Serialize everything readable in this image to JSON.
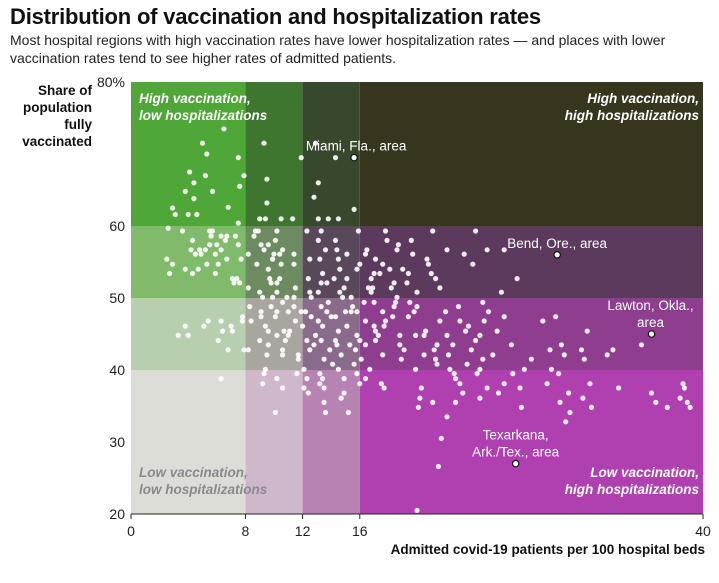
{
  "chart_data": {
    "type": "scatter",
    "title": "Distribution of vaccination and hospitalization rates",
    "subtitle": "Most hospital regions with high vaccination rates have lower hospitalization rates — and places with lower vaccination rates tend to see higher rates of admitted patients.",
    "ylabel": "Share of population fully vaccinated",
    "xlabel": "Admitted covid-19 patients per 100 hospital beds",
    "xlim": [
      0,
      40
    ],
    "ylim": [
      20,
      80
    ],
    "x_ticks": [
      {
        "value": 0,
        "label": "0"
      },
      {
        "value": 8,
        "label": "8"
      },
      {
        "value": 12,
        "label": "12"
      },
      {
        "value": 16,
        "label": "16"
      },
      {
        "value": 40,
        "label": "40"
      }
    ],
    "y_ticks": [
      {
        "value": 80,
        "label": "80%"
      },
      {
        "value": 60,
        "label": "60"
      },
      {
        "value": 50,
        "label": "50"
      },
      {
        "value": 40,
        "label": "40"
      },
      {
        "value": 30,
        "label": "30"
      },
      {
        "value": 20,
        "label": "20"
      }
    ],
    "x_breaks": [
      0,
      8,
      12,
      16,
      40
    ],
    "y_breaks": [
      20,
      40,
      50,
      60,
      80
    ],
    "band_colors": [
      [
        "#ddddd8",
        "#d0b8cc",
        "#b783b2",
        "#b040b0"
      ],
      [
        "#b7cfae",
        "#a9a59f",
        "#8b6b8c",
        "#8e3d8f"
      ],
      [
        "#7fbb6b",
        "#6e8a60",
        "#58485a",
        "#5c3a5e"
      ],
      [
        "#4fa737",
        "#3e7630",
        "#38482c",
        "#38351f"
      ]
    ],
    "quadrant_labels": [
      {
        "id": "tl",
        "lines": [
          "High vaccination,",
          "low hospitalizations"
        ],
        "color": "#ffffff"
      },
      {
        "id": "tr",
        "lines": [
          "High vaccination,",
          "high hospitalizations"
        ],
        "color": "#ffffff"
      },
      {
        "id": "bl",
        "lines": [
          "Low vaccination,",
          "low hospitalizations"
        ],
        "color": "#8a8a8a"
      },
      {
        "id": "br",
        "lines": [
          "Low vaccination,",
          "high hospitalizations"
        ],
        "color": "#ffffff"
      }
    ],
    "annotations": [
      {
        "lines": [
          "Miami, Fla., area"
        ],
        "x": 15.6,
        "y": 69.5
      },
      {
        "lines": [
          "Bend, Ore., area"
        ],
        "x": 29.8,
        "y": 56.0
      },
      {
        "lines": [
          "Lawton, Okla.,",
          "area"
        ],
        "x": 36.4,
        "y": 45.0
      },
      {
        "lines": [
          "Texarkana,",
          "Ark./Tex., area"
        ],
        "x": 26.9,
        "y": 27.0
      }
    ],
    "points": [
      [
        6.5,
        73.5
      ],
      [
        5.0,
        71.5
      ],
      [
        5.3,
        70.0
      ],
      [
        9.3,
        71.5
      ],
      [
        7.5,
        69.5
      ],
      [
        12.9,
        71.5
      ],
      [
        11.9,
        69.5
      ],
      [
        14.3,
        69.5
      ],
      [
        4.1,
        67.5
      ],
      [
        5.2,
        67.0
      ],
      [
        7.9,
        67.0
      ],
      [
        9.5,
        66.5
      ],
      [
        4.4,
        66.0
      ],
      [
        7.6,
        65.5
      ],
      [
        13.1,
        66.0
      ],
      [
        3.8,
        64.8
      ],
      [
        5.7,
        64.8
      ],
      [
        4.4,
        63.8
      ],
      [
        12.8,
        64.0
      ],
      [
        9.5,
        63.2
      ],
      [
        2.9,
        62.5
      ],
      [
        6.8,
        62.6
      ],
      [
        15.6,
        62.3
      ],
      [
        3.1,
        61.6
      ],
      [
        4.0,
        61.6
      ],
      [
        4.6,
        61.6
      ],
      [
        9.0,
        61.0
      ],
      [
        9.4,
        61.0
      ],
      [
        10.5,
        61.0
      ],
      [
        11.3,
        61.0
      ],
      [
        13.1,
        61.0
      ],
      [
        13.8,
        61.0
      ],
      [
        14.5,
        61.0
      ],
      [
        7.5,
        60.4
      ],
      [
        2.6,
        59.7
      ],
      [
        3.6,
        59.3
      ],
      [
        5.5,
        59.3
      ],
      [
        5.7,
        59.3
      ],
      [
        8.7,
        59.3
      ],
      [
        8.9,
        59.3
      ],
      [
        10.2,
        59.3
      ],
      [
        12.3,
        59.3
      ],
      [
        13.3,
        59.3
      ],
      [
        15.9,
        59.3
      ],
      [
        17.8,
        59.3
      ],
      [
        21.1,
        59.3
      ],
      [
        24.1,
        59.3
      ],
      [
        5.6,
        58.6
      ],
      [
        6.3,
        58.6
      ],
      [
        6.7,
        58.6
      ],
      [
        7.3,
        58.6
      ],
      [
        8.6,
        58.6
      ],
      [
        4.3,
        58.0
      ],
      [
        6.6,
        58.0
      ],
      [
        10.1,
        58.0
      ],
      [
        13.1,
        58.0
      ],
      [
        14.3,
        58.0
      ],
      [
        17.9,
        58.0
      ],
      [
        19.6,
        58.0
      ],
      [
        5.5,
        57.4
      ],
      [
        6.0,
        57.4
      ],
      [
        7.5,
        57.4
      ],
      [
        9.1,
        57.4
      ],
      [
        9.6,
        57.4
      ],
      [
        18.7,
        57.4
      ],
      [
        4.2,
        56.7
      ],
      [
        4.8,
        56.7
      ],
      [
        5.2,
        56.7
      ],
      [
        6.3,
        56.7
      ],
      [
        9.3,
        56.7
      ],
      [
        10.6,
        56.7
      ],
      [
        13.6,
        56.7
      ],
      [
        14.4,
        56.7
      ],
      [
        16.5,
        56.7
      ],
      [
        18.6,
        56.7
      ],
      [
        22.1,
        56.7
      ],
      [
        24.9,
        56.7
      ],
      [
        26.1,
        56.7
      ],
      [
        4.5,
        56.1
      ],
      [
        4.9,
        56.1
      ],
      [
        5.9,
        56.1
      ],
      [
        8.2,
        56.1
      ],
      [
        10.0,
        56.1
      ],
      [
        10.4,
        56.1
      ],
      [
        11.4,
        56.1
      ],
      [
        15.1,
        56.1
      ],
      [
        16.4,
        56.1
      ],
      [
        19.7,
        56.1
      ],
      [
        23.3,
        56.1
      ],
      [
        2.5,
        55.4
      ],
      [
        6.7,
        55.4
      ],
      [
        7.7,
        55.4
      ],
      [
        9.9,
        55.4
      ],
      [
        12.5,
        55.4
      ],
      [
        13.2,
        55.4
      ],
      [
        14.5,
        55.4
      ],
      [
        17.1,
        55.4
      ],
      [
        20.7,
        55.4
      ],
      [
        2.9,
        54.7
      ],
      [
        5.3,
        54.7
      ],
      [
        6.1,
        54.7
      ],
      [
        8.8,
        54.7
      ],
      [
        10.5,
        54.7
      ],
      [
        11.4,
        54.7
      ],
      [
        16.0,
        54.7
      ],
      [
        17.6,
        54.7
      ],
      [
        20.8,
        54.7
      ],
      [
        23.9,
        54.7
      ],
      [
        3.8,
        54.0
      ],
      [
        4.7,
        54.0
      ],
      [
        9.6,
        54.0
      ],
      [
        14.6,
        54.0
      ],
      [
        15.8,
        54.0
      ],
      [
        18.1,
        54.0
      ],
      [
        19.0,
        54.0
      ],
      [
        2.7,
        53.4
      ],
      [
        4.3,
        53.4
      ],
      [
        5.9,
        53.4
      ],
      [
        13.4,
        53.4
      ],
      [
        17.0,
        53.4
      ],
      [
        17.4,
        53.4
      ],
      [
        19.4,
        53.4
      ],
      [
        21.0,
        53.4
      ],
      [
        7.1,
        52.7
      ],
      [
        7.4,
        52.7
      ],
      [
        9.7,
        52.7
      ],
      [
        10.4,
        52.7
      ],
      [
        12.4,
        52.7
      ],
      [
        14.2,
        52.7
      ],
      [
        15.1,
        52.7
      ],
      [
        16.8,
        52.7
      ],
      [
        21.3,
        52.7
      ],
      [
        27.0,
        52.7
      ],
      [
        7.2,
        52.1
      ],
      [
        7.6,
        52.1
      ],
      [
        9.8,
        52.1
      ],
      [
        10.2,
        52.1
      ],
      [
        13.3,
        52.1
      ],
      [
        13.7,
        52.1
      ],
      [
        18.4,
        52.1
      ],
      [
        19.3,
        52.1
      ],
      [
        8.2,
        51.4
      ],
      [
        11.5,
        51.4
      ],
      [
        14.9,
        51.4
      ],
      [
        16.6,
        51.4
      ],
      [
        16.9,
        51.4
      ],
      [
        18.2,
        51.4
      ],
      [
        21.6,
        51.4
      ],
      [
        9.0,
        50.8
      ],
      [
        10.2,
        50.8
      ],
      [
        12.5,
        50.8
      ],
      [
        13.1,
        50.8
      ],
      [
        14.6,
        50.8
      ],
      [
        16.8,
        50.8
      ],
      [
        20.0,
        50.8
      ],
      [
        25.9,
        50.8
      ],
      [
        9.2,
        50.1
      ],
      [
        9.9,
        50.1
      ],
      [
        10.9,
        50.1
      ],
      [
        11.4,
        50.1
      ],
      [
        12.6,
        50.1
      ],
      [
        14.8,
        50.1
      ],
      [
        15.4,
        50.1
      ],
      [
        18.6,
        50.1
      ],
      [
        10.6,
        49.4
      ],
      [
        13.8,
        49.4
      ],
      [
        16.3,
        49.4
      ],
      [
        17.0,
        49.4
      ],
      [
        18.5,
        49.4
      ],
      [
        19.5,
        49.4
      ],
      [
        24.6,
        49.4
      ],
      [
        8.3,
        48.8
      ],
      [
        9.8,
        48.8
      ],
      [
        11.4,
        48.8
      ],
      [
        13.3,
        48.8
      ],
      [
        15.5,
        48.8
      ],
      [
        18.4,
        48.8
      ],
      [
        20.0,
        48.8
      ],
      [
        22.9,
        48.8
      ],
      [
        9.1,
        48.1
      ],
      [
        10.2,
        48.1
      ],
      [
        11.0,
        48.1
      ],
      [
        11.9,
        48.1
      ],
      [
        12.2,
        48.1
      ],
      [
        13.7,
        48.1
      ],
      [
        15.0,
        48.1
      ],
      [
        15.4,
        48.1
      ],
      [
        15.8,
        48.1
      ],
      [
        17.6,
        48.1
      ],
      [
        19.8,
        48.1
      ],
      [
        22.0,
        48.1
      ],
      [
        25.0,
        48.1
      ],
      [
        7.8,
        47.4
      ],
      [
        9.1,
        47.4
      ],
      [
        10.1,
        47.4
      ],
      [
        12.6,
        47.4
      ],
      [
        14.0,
        47.4
      ],
      [
        14.3,
        47.4
      ],
      [
        18.3,
        47.4
      ],
      [
        19.4,
        47.4
      ],
      [
        26.1,
        47.4
      ],
      [
        29.7,
        47.4
      ],
      [
        5.4,
        46.8
      ],
      [
        6.3,
        46.8
      ],
      [
        7.8,
        46.8
      ],
      [
        8.4,
        46.8
      ],
      [
        11.5,
        46.8
      ],
      [
        13.1,
        46.8
      ],
      [
        16.4,
        46.8
      ],
      [
        17.8,
        46.8
      ],
      [
        21.6,
        46.8
      ],
      [
        23.0,
        46.8
      ],
      [
        24.7,
        46.8
      ],
      [
        28.8,
        46.8
      ],
      [
        3.8,
        46.1
      ],
      [
        5.1,
        46.1
      ],
      [
        7.0,
        46.1
      ],
      [
        9.4,
        46.1
      ],
      [
        12.0,
        46.1
      ],
      [
        13.4,
        46.1
      ],
      [
        15.1,
        46.1
      ],
      [
        17.0,
        46.1
      ],
      [
        17.7,
        46.1
      ],
      [
        23.6,
        46.1
      ],
      [
        6.4,
        45.4
      ],
      [
        7.1,
        45.4
      ],
      [
        9.6,
        45.4
      ],
      [
        10.7,
        45.4
      ],
      [
        11.1,
        45.4
      ],
      [
        14.5,
        45.4
      ],
      [
        17.1,
        45.4
      ],
      [
        20.6,
        45.4
      ],
      [
        23.4,
        45.4
      ],
      [
        25.6,
        45.4
      ],
      [
        31.9,
        45.4
      ],
      [
        3.3,
        44.8
      ],
      [
        4.0,
        44.8
      ],
      [
        10.2,
        44.8
      ],
      [
        11.0,
        44.8
      ],
      [
        12.9,
        44.8
      ],
      [
        15.8,
        44.8
      ],
      [
        17.3,
        44.8
      ],
      [
        18.8,
        44.8
      ],
      [
        19.9,
        44.8
      ],
      [
        20.5,
        44.8
      ],
      [
        22.1,
        44.8
      ],
      [
        24.4,
        44.8
      ],
      [
        6.1,
        44.1
      ],
      [
        9.0,
        44.1
      ],
      [
        10.8,
        44.1
      ],
      [
        12.3,
        44.1
      ],
      [
        13.3,
        44.1
      ],
      [
        14.3,
        44.1
      ],
      [
        16.0,
        44.1
      ],
      [
        17.1,
        44.1
      ],
      [
        24.1,
        44.1
      ],
      [
        9.6,
        43.5
      ],
      [
        12.8,
        43.5
      ],
      [
        14.4,
        43.5
      ],
      [
        15.3,
        43.5
      ],
      [
        16.4,
        43.5
      ],
      [
        18.8,
        43.5
      ],
      [
        21.4,
        43.5
      ],
      [
        22.5,
        43.5
      ],
      [
        26.6,
        43.5
      ],
      [
        30.1,
        43.5
      ],
      [
        35.7,
        43.5
      ],
      [
        6.8,
        42.8
      ],
      [
        7.9,
        42.8
      ],
      [
        8.2,
        42.8
      ],
      [
        10.6,
        42.8
      ],
      [
        12.5,
        42.8
      ],
      [
        13.9,
        42.8
      ],
      [
        15.7,
        42.8
      ],
      [
        19.1,
        42.8
      ],
      [
        21.2,
        42.8
      ],
      [
        23.8,
        42.8
      ],
      [
        29.3,
        42.8
      ],
      [
        31.5,
        42.8
      ],
      [
        33.7,
        42.8
      ],
      [
        9.5,
        42.1
      ],
      [
        10.6,
        42.1
      ],
      [
        11.7,
        42.1
      ],
      [
        14.7,
        42.1
      ],
      [
        17.6,
        42.1
      ],
      [
        20.5,
        42.1
      ],
      [
        22.2,
        42.1
      ],
      [
        25.3,
        42.1
      ],
      [
        30.3,
        42.1
      ],
      [
        33.3,
        42.1
      ],
      [
        11.7,
        41.5
      ],
      [
        13.5,
        41.5
      ],
      [
        16.1,
        41.5
      ],
      [
        18.9,
        41.5
      ],
      [
        21.3,
        41.5
      ],
      [
        24.6,
        41.5
      ],
      [
        28.0,
        41.5
      ],
      [
        31.7,
        41.5
      ],
      [
        14.1,
        40.8
      ],
      [
        15.6,
        40.8
      ],
      [
        21.4,
        40.8
      ],
      [
        23.5,
        40.8
      ],
      [
        9.4,
        40.1
      ],
      [
        12.1,
        40.1
      ],
      [
        14.5,
        40.1
      ],
      [
        16.7,
        40.1
      ],
      [
        19.9,
        40.1
      ],
      [
        22.3,
        40.1
      ],
      [
        24.4,
        40.1
      ],
      [
        27.5,
        40.1
      ],
      [
        29.4,
        40.1
      ],
      [
        9.3,
        39.5
      ],
      [
        11.6,
        39.5
      ],
      [
        13.2,
        39.5
      ],
      [
        15.8,
        39.5
      ],
      [
        22.6,
        39.5
      ],
      [
        24.2,
        39.5
      ],
      [
        26.7,
        39.5
      ],
      [
        29.9,
        39.5
      ],
      [
        6.3,
        38.8
      ],
      [
        10.2,
        38.8
      ],
      [
        12.3,
        38.8
      ],
      [
        13.4,
        38.8
      ],
      [
        14.9,
        38.8
      ],
      [
        16.4,
        38.8
      ],
      [
        22.7,
        38.8
      ],
      [
        9.2,
        38.1
      ],
      [
        13.2,
        38.1
      ],
      [
        16.0,
        38.1
      ],
      [
        17.5,
        38.1
      ],
      [
        23.0,
        38.1
      ],
      [
        26.1,
        38.1
      ],
      [
        29.1,
        38.1
      ],
      [
        32.1,
        38.1
      ],
      [
        38.6,
        38.1
      ],
      [
        10.6,
        37.5
      ],
      [
        12.1,
        37.5
      ],
      [
        13.5,
        37.5
      ],
      [
        17.7,
        37.5
      ],
      [
        20.3,
        37.5
      ],
      [
        24.9,
        37.5
      ],
      [
        27.2,
        37.5
      ],
      [
        34.1,
        37.5
      ],
      [
        38.7,
        37.5
      ],
      [
        12.4,
        36.8
      ],
      [
        14.9,
        36.8
      ],
      [
        23.2,
        36.8
      ],
      [
        25.7,
        36.8
      ],
      [
        30.6,
        36.8
      ],
      [
        36.4,
        36.8
      ],
      [
        14.7,
        36.1
      ],
      [
        20.2,
        36.1
      ],
      [
        24.4,
        36.1
      ],
      [
        31.6,
        36.1
      ],
      [
        38.4,
        36.1
      ],
      [
        13.5,
        35.5
      ],
      [
        21.1,
        35.5
      ],
      [
        22.7,
        35.5
      ],
      [
        30.0,
        35.5
      ],
      [
        36.7,
        35.5
      ],
      [
        38.9,
        35.5
      ],
      [
        20.1,
        34.8
      ],
      [
        27.3,
        34.8
      ],
      [
        32.2,
        34.8
      ],
      [
        37.5,
        34.8
      ],
      [
        39.1,
        34.8
      ],
      [
        10.1,
        34.1
      ],
      [
        13.6,
        34.1
      ],
      [
        15.2,
        34.1
      ],
      [
        30.7,
        34.1
      ],
      [
        22.1,
        33.5
      ],
      [
        30.4,
        32.8
      ],
      [
        21.7,
        30.5
      ],
      [
        21.5,
        26.6
      ],
      [
        20.0,
        20.5
      ]
    ]
  }
}
